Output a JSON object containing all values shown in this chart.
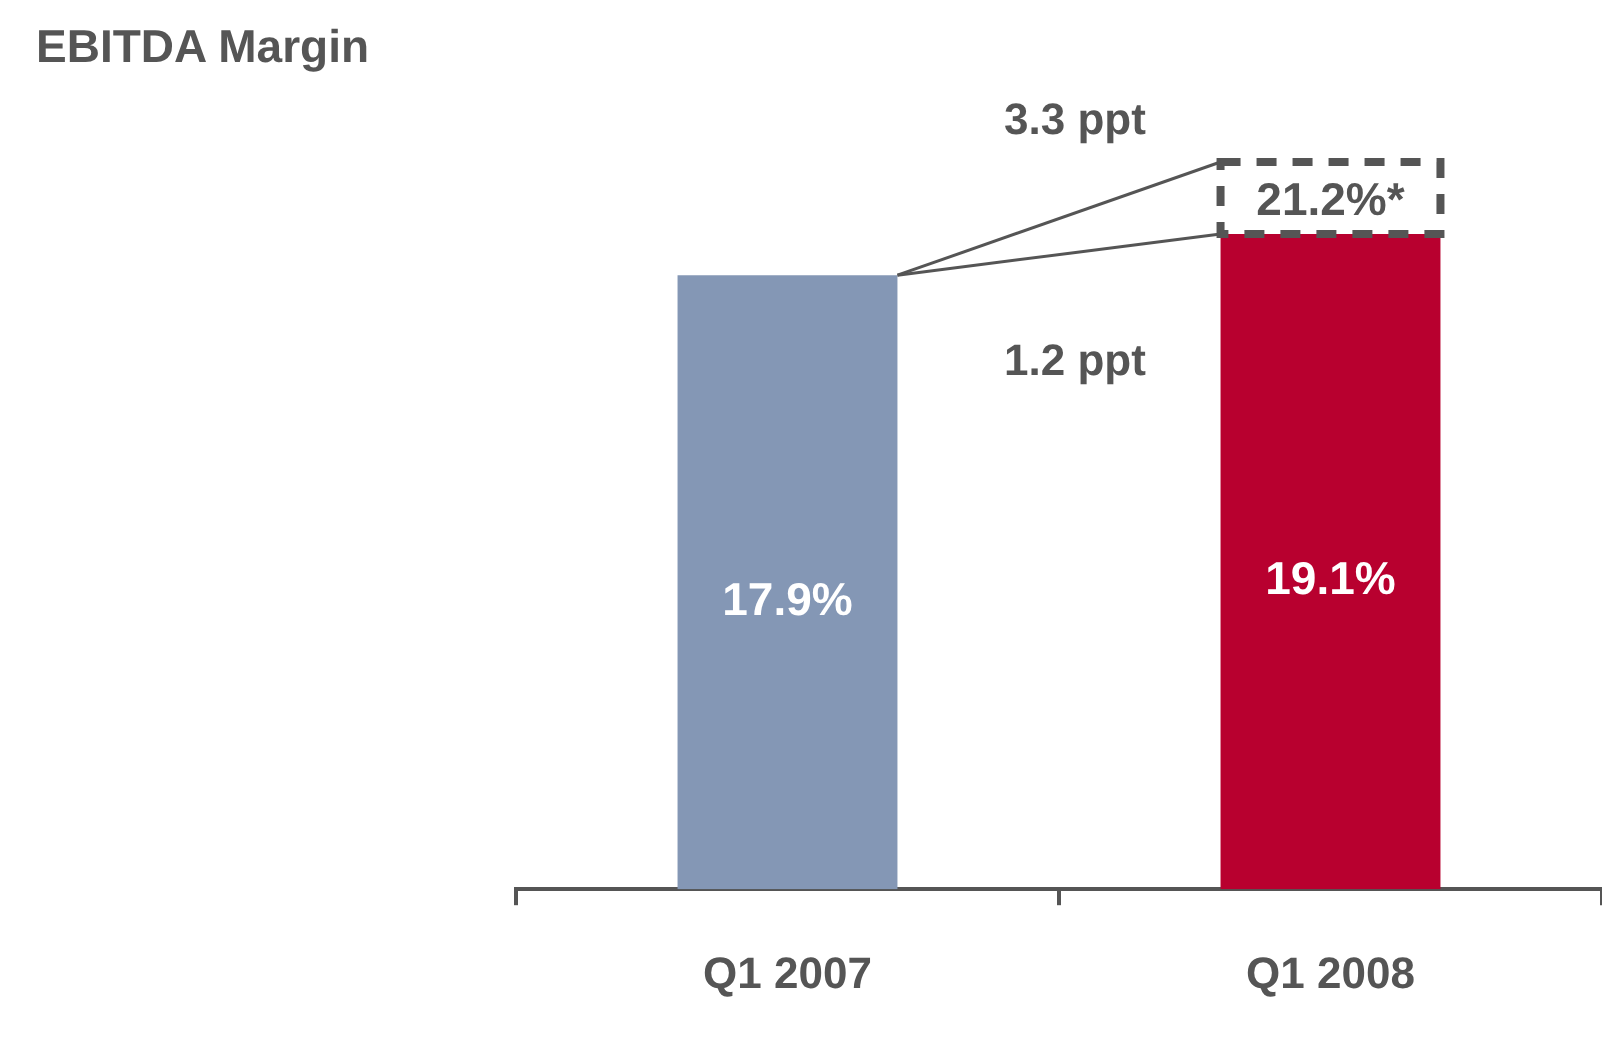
{
  "chart_data": {
    "type": "bar",
    "title": "EBITDA Margin",
    "categories": [
      "Q1 2007",
      "Q1 2008"
    ],
    "stacked": true,
    "tick_labels": "x",
    "grid": false,
    "legend": false,
    "series": [
      {
        "colors": [
          "#8497b5",
          "#b8002f"
        ],
        "values": [
          17.9,
          19.1
        ],
        "value_labels": [
          "17.9%",
          "19.1%"
        ]
      },
      {
        "color": "#555555",
        "line_style": "dashed",
        "values": [
          null,
          2.1
        ]
      }
    ],
    "annotations": [
      "3.3 ppt",
      "1.2 ppt",
      {
        "text": "21.2%*",
        "x": "Q1 2008",
        "y": 21.2
      }
    ]
  }
}
